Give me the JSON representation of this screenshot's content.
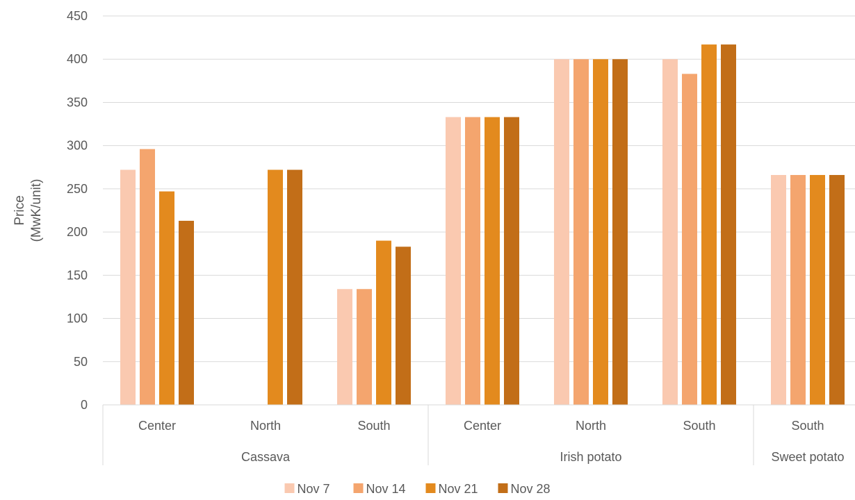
{
  "chart_data": {
    "type": "bar",
    "ylabel": "Price\n(MwK/unit)",
    "ylim": [
      0,
      450
    ],
    "yticks": [
      0,
      50,
      100,
      150,
      200,
      250,
      300,
      350,
      400,
      450
    ],
    "grid": true,
    "legend_position": "bottom",
    "groups": [
      {
        "label": "Cassava",
        "categories": [
          "Center",
          "North",
          "South"
        ]
      },
      {
        "label": "Irish potato",
        "categories": [
          "Center",
          "North",
          "South"
        ]
      },
      {
        "label": "Sweet potato",
        "categories": [
          "South"
        ]
      }
    ],
    "series": [
      {
        "name": "Nov 7",
        "color": "#FAC9B0",
        "values": [
          272,
          null,
          134,
          333,
          400,
          400,
          266
        ]
      },
      {
        "name": "Nov 14",
        "color": "#F4A56E",
        "values": [
          296,
          null,
          134,
          333,
          400,
          383,
          266
        ]
      },
      {
        "name": "Nov 21",
        "color": "#E38A1E",
        "values": [
          247,
          272,
          190,
          333,
          400,
          417,
          266
        ]
      },
      {
        "name": "Nov 28",
        "color": "#C26E18",
        "values": [
          213,
          272,
          183,
          333,
          400,
          417,
          266
        ]
      }
    ]
  }
}
